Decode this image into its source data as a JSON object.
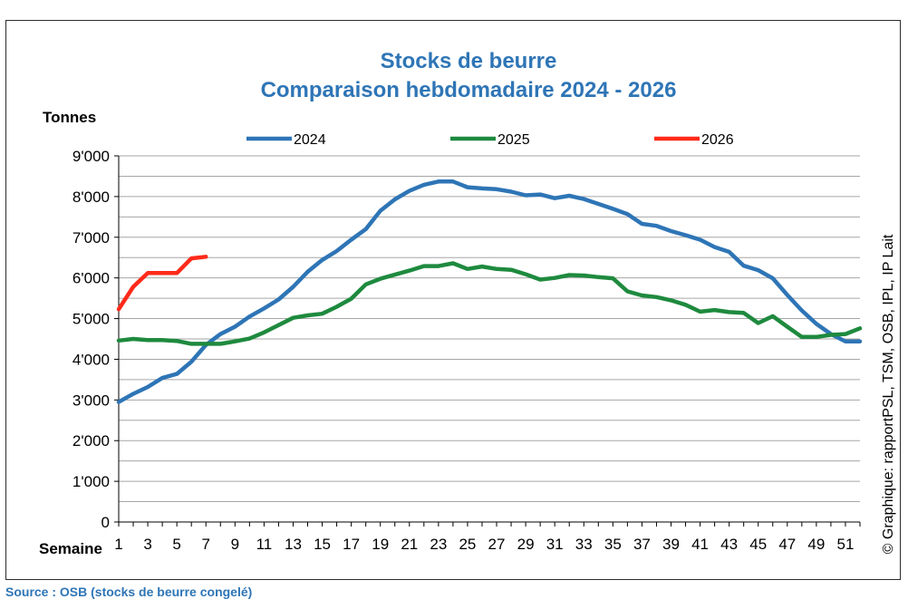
{
  "chart_data": {
    "type": "line",
    "title": "Stocks de beurre",
    "subtitle": "Comparaison hebdomadaire 2024 - 2026",
    "ylabel": "Tonnes",
    "xlabel": "Semaine",
    "ylim": [
      0,
      9000
    ],
    "y_ticks": [
      0,
      1000,
      2000,
      3000,
      4000,
      5000,
      6000,
      7000,
      8000,
      9000
    ],
    "y_tick_labels": [
      "0",
      "1'000",
      "2'000",
      "3'000",
      "4'000",
      "5'000",
      "6'000",
      "7'000",
      "8'000",
      "9'000"
    ],
    "x_range": [
      1,
      52
    ],
    "x_tick_labels": [
      "1",
      "3",
      "5",
      "7",
      "9",
      "11",
      "13",
      "15",
      "17",
      "19",
      "21",
      "23",
      "25",
      "27",
      "29",
      "31",
      "33",
      "35",
      "37",
      "39",
      "41",
      "43",
      "45",
      "47",
      "49",
      "51"
    ],
    "grid": true,
    "legend_position": "top",
    "series": [
      {
        "name": "2024",
        "color": "#2e75b6",
        "x": [
          1,
          2,
          3,
          4,
          5,
          6,
          7,
          8,
          9,
          10,
          11,
          12,
          13,
          14,
          15,
          16,
          17,
          18,
          19,
          20,
          21,
          22,
          23,
          24,
          25,
          26,
          27,
          28,
          29,
          30,
          31,
          32,
          33,
          34,
          35,
          36,
          37,
          38,
          39,
          40,
          41,
          42,
          43,
          44,
          45,
          46,
          47,
          48,
          49,
          50,
          51,
          52
        ],
        "values": [
          2950,
          3150,
          3320,
          3540,
          3640,
          3940,
          4350,
          4620,
          4800,
          5050,
          5250,
          5470,
          5780,
          6150,
          6440,
          6660,
          6940,
          7200,
          7650,
          7930,
          8140,
          8290,
          8370,
          8370,
          8230,
          8200,
          8180,
          8120,
          8030,
          8050,
          7960,
          8020,
          7940,
          7820,
          7700,
          7570,
          7330,
          7280,
          7150,
          7050,
          6940,
          6760,
          6640,
          6300,
          6190,
          5990,
          5580,
          5200,
          4870,
          4620,
          4440,
          4440
        ]
      },
      {
        "name": "2025",
        "color": "#1e8a3e",
        "x": [
          1,
          2,
          3,
          4,
          5,
          6,
          7,
          8,
          9,
          10,
          11,
          12,
          13,
          14,
          15,
          16,
          17,
          18,
          19,
          20,
          21,
          22,
          23,
          24,
          25,
          26,
          27,
          28,
          29,
          30,
          31,
          32,
          33,
          34,
          35,
          36,
          37,
          38,
          39,
          40,
          41,
          42,
          43,
          44,
          45,
          46,
          47,
          48,
          49,
          50,
          51,
          52
        ],
        "values": [
          4460,
          4500,
          4470,
          4470,
          4450,
          4380,
          4380,
          4380,
          4440,
          4510,
          4660,
          4840,
          5020,
          5080,
          5120,
          5290,
          5490,
          5840,
          5980,
          6080,
          6180,
          6290,
          6290,
          6360,
          6220,
          6280,
          6220,
          6200,
          6090,
          5960,
          6000,
          6070,
          6060,
          6020,
          5990,
          5670,
          5570,
          5530,
          5450,
          5340,
          5170,
          5210,
          5160,
          5140,
          4890,
          5060,
          4800,
          4550,
          4550,
          4600,
          4620,
          4760
        ]
      },
      {
        "name": "2026",
        "color": "#ff2a1a",
        "x": [
          1,
          2,
          3,
          4,
          5,
          6,
          7
        ],
        "values": [
          5230,
          5780,
          6120,
          6120,
          6120,
          6480,
          6520
        ]
      }
    ],
    "credit": "© Graphique: rapportPSL, TSM, OSB, IPL, IP Lait",
    "source": "Source : OSB (stocks de beurre congelé)"
  }
}
